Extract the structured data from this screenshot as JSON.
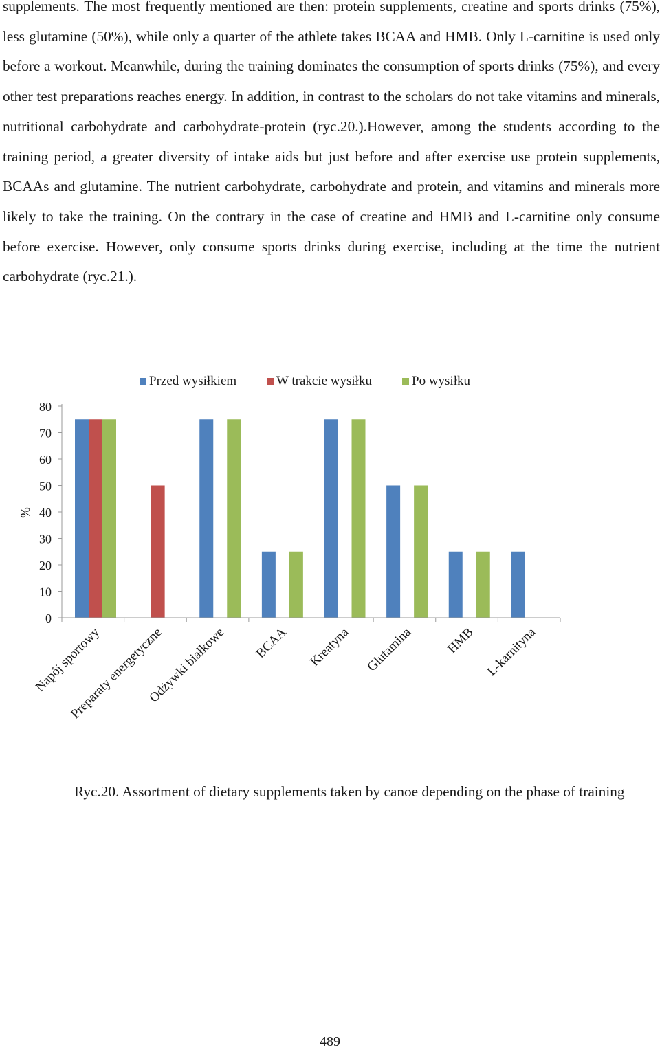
{
  "body_text": "supplements. The most frequently mentioned are then: protein supplements, creatine and sports drinks (75%), less glutamine (50%), while only a quarter of the athlete takes BCAA and HMB. Only L-carnitine is used only before a workout. Meanwhile, during the training dominates the consumption of sports drinks (75%), and every other test preparations reaches energy. In addition, in contrast to the scholars do not take vitamins and minerals, nutritional carbohydrate and carbohydrate-protein (ryc.20.).However, among the students according to the training period, a greater diversity of intake aids but just before and after exercise use protein supplements, BCAAs and glutamine. The nutrient carbohydrate, carbohydrate and protein, and vitamins and minerals more likely to take the training. On the contrary in the case of creatine and HMB and L-carnitine only consume before exercise. However, only consume sports drinks during exercise, including at the time the nutrient carbohydrate (ryc.21.).",
  "chart_data": {
    "type": "bar",
    "categories": [
      "Napój sportowy",
      "Preparaty energetyczne",
      "Odżywki białkowe",
      "BCAA",
      "Kreatyna",
      "Glutamina",
      "HMB",
      "L-karnityna"
    ],
    "series": [
      {
        "name": "Przed wysiłkiem",
        "color": "#4F81BD",
        "values": [
          75,
          0,
          75,
          25,
          75,
          50,
          25,
          25
        ]
      },
      {
        "name": "W trakcie wysiłku",
        "color": "#C0504D",
        "values": [
          75,
          50,
          0,
          0,
          0,
          0,
          0,
          0
        ]
      },
      {
        "name": "Po wysiłku",
        "color": "#9BBB59",
        "values": [
          75,
          0,
          75,
          25,
          75,
          50,
          25,
          0
        ]
      }
    ],
    "ylabel": "%",
    "ylim": [
      0,
      80
    ],
    "yticks": [
      0,
      10,
      20,
      30,
      40,
      50,
      60,
      70,
      80
    ],
    "legend_position": "top",
    "grid": false
  },
  "caption": "Ryc.20. Assortment of dietary supplements taken by canoe depending on the phase of training",
  "page_number": "489"
}
